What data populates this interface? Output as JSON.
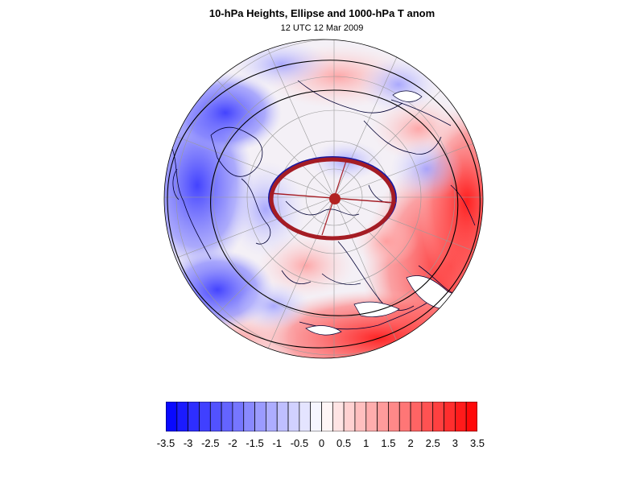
{
  "figure": {
    "title": "10-hPa Heights, Ellipse and 1000-hPa T anom",
    "subtitle": "12 UTC 12 Mar 2009"
  },
  "map": {
    "projection": "polar-stereographic-north",
    "fill_field": "1000-hPa T anom",
    "contour_field": "10-hPa Heights",
    "overlay": "Ellipse",
    "ellipse_color": "#a51c24",
    "center_marker_color": "#b22222",
    "contour_color": "#000000",
    "coastline_color": "#000033",
    "graticule_color": "#9a9a9a"
  },
  "colorbar": {
    "labels": [
      "-3.5",
      "-3",
      "-2.5",
      "-2",
      "-1.5",
      "-1",
      "-0.5",
      "0",
      "0.5",
      "1",
      "1.5",
      "2",
      "2.5",
      "3",
      "3.5"
    ],
    "levels": [
      -3.5,
      -3.25,
      -3,
      -2.75,
      -2.5,
      -2.25,
      -2,
      -1.75,
      -1.5,
      -1.25,
      -1,
      -0.75,
      -0.5,
      -0.25,
      0,
      0.25,
      0.5,
      0.75,
      1,
      1.25,
      1.5,
      1.75,
      2,
      2.25,
      2.5,
      2.75,
      3,
      3.25,
      3.5
    ],
    "min_color": "#0000ff",
    "mid_color": "#ffffff",
    "max_color": "#ff0000"
  }
}
